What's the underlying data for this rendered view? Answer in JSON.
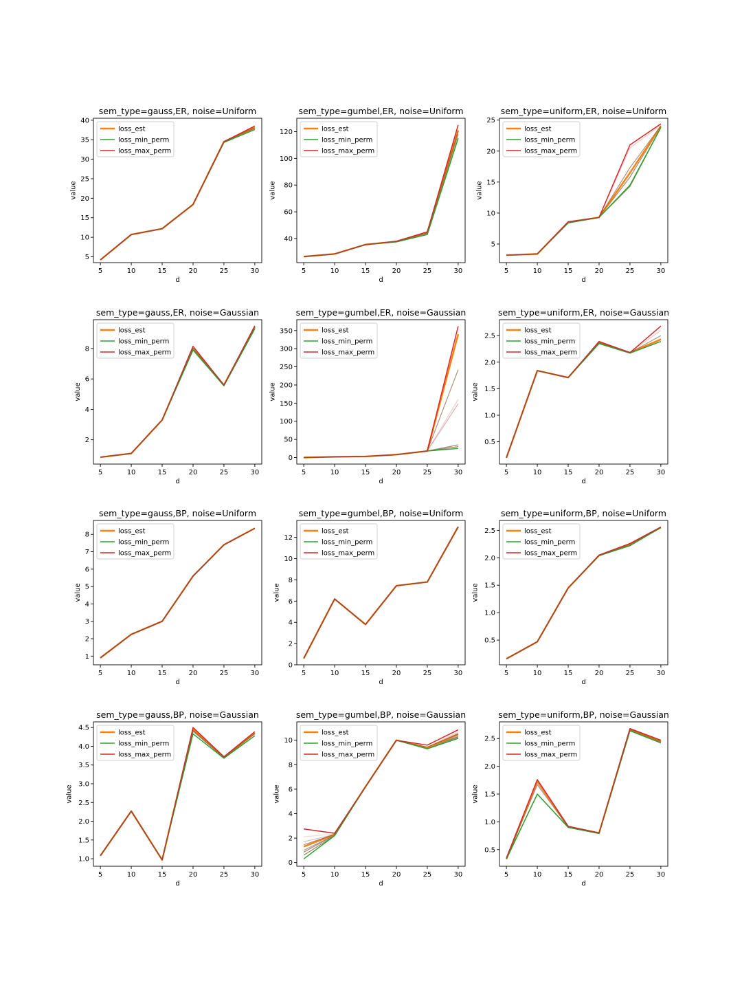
{
  "chart_data": [
    {
      "type": "line",
      "title": "sem_type=gauss,ER, noise=Uniform",
      "xlabel": "d",
      "ylabel": "value",
      "x": [
        5,
        10,
        15,
        20,
        25,
        30
      ],
      "xticks": [
        5,
        10,
        15,
        20,
        25,
        30
      ],
      "ylim": [
        3.5,
        40.5
      ],
      "yticks": [
        5,
        10,
        15,
        20,
        25,
        30,
        35,
        40
      ],
      "legend_position": "upper-left",
      "series": [
        {
          "name": "loss_est",
          "color": "#ff7f0e",
          "values": [
            4.2,
            10.7,
            12.2,
            18.4,
            34.5,
            38.1
          ]
        },
        {
          "name": "loss_min_perm",
          "color": "#2ca02c",
          "values": [
            4.2,
            10.7,
            12.2,
            18.4,
            34.3,
            37.6
          ]
        },
        {
          "name": "loss_max_perm",
          "color": "#d62728",
          "values": [
            4.2,
            10.7,
            12.2,
            18.4,
            34.5,
            38.5
          ]
        }
      ],
      "band": [
        {
          "color": "#7a6040",
          "values": [
            4.2,
            10.7,
            12.2,
            18.4,
            34.4,
            37.9
          ]
        }
      ]
    },
    {
      "type": "line",
      "title": "sem_type=gumbel,ER, noise=Uniform",
      "xlabel": "d",
      "ylabel": "value",
      "x": [
        5,
        10,
        15,
        20,
        25,
        30
      ],
      "xticks": [
        5,
        10,
        15,
        20,
        25,
        30
      ],
      "ylim": [
        22,
        130
      ],
      "yticks": [
        40,
        60,
        80,
        100,
        120
      ],
      "legend_position": "upper-left",
      "series": [
        {
          "name": "loss_est",
          "color": "#ff7f0e",
          "values": [
            26.5,
            28.5,
            35.5,
            37.8,
            44.5,
            121
          ]
        },
        {
          "name": "loss_min_perm",
          "color": "#2ca02c",
          "values": [
            26.5,
            28.5,
            35.5,
            37.5,
            43.0,
            115
          ]
        },
        {
          "name": "loss_max_perm",
          "color": "#d62728",
          "values": [
            26.5,
            28.5,
            35.5,
            38.0,
            45.0,
            125
          ]
        }
      ],
      "band": [
        {
          "color": "#7a6040",
          "values": [
            26.5,
            28.5,
            35.5,
            37.7,
            43.8,
            118
          ]
        }
      ]
    },
    {
      "type": "line",
      "title": "sem_type=uniform,ER, noise=Uniform",
      "xlabel": "d",
      "ylabel": "value",
      "x": [
        5,
        10,
        15,
        20,
        25,
        30
      ],
      "xticks": [
        5,
        10,
        15,
        20,
        25,
        30
      ],
      "ylim": [
        2.0,
        25.3
      ],
      "yticks": [
        5,
        10,
        15,
        20,
        25
      ],
      "legend_position": "upper-left",
      "series": [
        {
          "name": "loss_est",
          "color": "#ff7f0e",
          "values": [
            3.2,
            3.4,
            8.5,
            9.3,
            16.5,
            24.0
          ]
        },
        {
          "name": "loss_min_perm",
          "color": "#2ca02c",
          "values": [
            3.2,
            3.4,
            8.4,
            9.3,
            14.5,
            23.8
          ]
        },
        {
          "name": "loss_max_perm",
          "color": "#d62728",
          "values": [
            3.2,
            3.4,
            8.6,
            9.3,
            21.0,
            24.4
          ]
        }
      ],
      "band": [
        {
          "color": "#7a6040",
          "values": [
            3.2,
            3.4,
            8.5,
            9.3,
            14.3,
            23.8
          ]
        },
        {
          "color": "#e8b8b8",
          "values": [
            3.2,
            3.4,
            8.5,
            9.3,
            20.5,
            24.2
          ]
        },
        {
          "color": "#8a6a4a",
          "values": [
            3.2,
            3.4,
            8.5,
            9.3,
            15.8,
            24.0
          ]
        }
      ]
    },
    {
      "type": "line",
      "title": "sem_type=gauss,ER, noise=Gaussian",
      "xlabel": "d",
      "ylabel": "value",
      "x": [
        5,
        10,
        15,
        20,
        25,
        30
      ],
      "xticks": [
        5,
        10,
        15,
        20,
        25,
        30
      ],
      "ylim": [
        0.4,
        9.9
      ],
      "yticks": [
        2,
        4,
        6,
        8
      ],
      "legend_position": "upper-left",
      "series": [
        {
          "name": "loss_est",
          "color": "#ff7f0e",
          "values": [
            0.85,
            1.1,
            3.3,
            8.0,
            5.6,
            9.4
          ]
        },
        {
          "name": "loss_min_perm",
          "color": "#2ca02c",
          "values": [
            0.85,
            1.1,
            3.3,
            7.9,
            5.55,
            9.3
          ]
        },
        {
          "name": "loss_max_perm",
          "color": "#d62728",
          "values": [
            0.85,
            1.1,
            3.3,
            8.15,
            5.6,
            9.5
          ]
        }
      ],
      "band": [
        {
          "color": "#7a6040",
          "values": [
            0.85,
            1.1,
            3.3,
            8.0,
            5.55,
            9.35
          ]
        }
      ]
    },
    {
      "type": "line",
      "title": "sem_type=gumbel,ER, noise=Gaussian",
      "xlabel": "d",
      "ylabel": "value",
      "x": [
        5,
        10,
        15,
        20,
        25,
        30
      ],
      "xticks": [
        5,
        10,
        15,
        20,
        25,
        30
      ],
      "ylim": [
        -18,
        380
      ],
      "yticks": [
        0,
        50,
        100,
        150,
        200,
        250,
        300,
        350
      ],
      "legend_position": "upper-left",
      "series": [
        {
          "name": "loss_est",
          "color": "#ff7f0e",
          "values": [
            0,
            2,
            3,
            8,
            18,
            340
          ]
        },
        {
          "name": "loss_min_perm",
          "color": "#2ca02c",
          "values": [
            0,
            2,
            3,
            8,
            18,
            25
          ]
        },
        {
          "name": "loss_max_perm",
          "color": "#d62728",
          "values": [
            0,
            2,
            3,
            8,
            18,
            362
          ]
        }
      ],
      "band": [
        {
          "color": "#e8c0c0",
          "values": [
            0,
            2,
            3,
            8,
            18,
            160
          ]
        },
        {
          "color": "#c8a0a0",
          "values": [
            0,
            2,
            3,
            8,
            18,
            148
          ]
        },
        {
          "color": "#7a6040",
          "values": [
            0,
            2,
            3,
            8,
            18,
            30
          ]
        },
        {
          "color": "#8a6a4a",
          "values": [
            0,
            2,
            3,
            8,
            18,
            35
          ]
        }
      ]
    },
    {
      "type": "line",
      "title": "sem_type=uniform,ER, noise=Gaussian",
      "xlabel": "d",
      "ylabel": "value",
      "x": [
        5,
        10,
        15,
        20,
        25,
        30
      ],
      "xticks": [
        5,
        10,
        15,
        20,
        25,
        30
      ],
      "ylim": [
        0.08,
        2.8
      ],
      "yticks": [
        0.5,
        1.0,
        1.5,
        2.0,
        2.5
      ],
      "legend_position": "upper-left",
      "series": [
        {
          "name": "loss_est",
          "color": "#ff7f0e",
          "values": [
            0.2,
            1.84,
            1.71,
            2.37,
            2.18,
            2.43
          ]
        },
        {
          "name": "loss_min_perm",
          "color": "#2ca02c",
          "values": [
            0.2,
            1.84,
            1.71,
            2.35,
            2.17,
            2.39
          ]
        },
        {
          "name": "loss_max_perm",
          "color": "#d62728",
          "values": [
            0.2,
            1.84,
            1.71,
            2.39,
            2.18,
            2.68
          ]
        }
      ],
      "band": [
        {
          "color": "#7a6040",
          "values": [
            0.2,
            1.84,
            1.71,
            2.37,
            2.17,
            2.42
          ]
        },
        {
          "color": "#e8c0c0",
          "values": [
            0.2,
            1.84,
            1.71,
            2.37,
            2.18,
            2.6
          ]
        }
      ]
    },
    {
      "type": "line",
      "title": "sem_type=gauss,BP, noise=Uniform",
      "xlabel": "d",
      "ylabel": "value",
      "x": [
        5,
        10,
        15,
        20,
        25,
        30
      ],
      "xticks": [
        5,
        10,
        15,
        20,
        25,
        30
      ],
      "ylim": [
        0.5,
        8.8
      ],
      "yticks": [
        1,
        2,
        3,
        4,
        5,
        6,
        7,
        8
      ],
      "legend_position": "upper-left",
      "series": [
        {
          "name": "loss_est",
          "color": "#ff7f0e",
          "values": [
            0.9,
            2.25,
            3.0,
            5.6,
            7.4,
            8.35
          ]
        },
        {
          "name": "loss_min_perm",
          "color": "#2ca02c",
          "values": [
            0.9,
            2.25,
            3.0,
            5.6,
            7.4,
            8.35
          ]
        },
        {
          "name": "loss_max_perm",
          "color": "#d62728",
          "values": [
            0.9,
            2.25,
            3.0,
            5.6,
            7.4,
            8.35
          ]
        }
      ],
      "band": [
        {
          "color": "#7a6040",
          "values": [
            0.9,
            2.25,
            3.0,
            5.6,
            7.4,
            8.35
          ]
        }
      ]
    },
    {
      "type": "line",
      "title": "sem_type=gumbel,BP, noise=Uniform",
      "xlabel": "d",
      "ylabel": "value",
      "x": [
        5,
        10,
        15,
        20,
        25,
        30
      ],
      "xticks": [
        5,
        10,
        15,
        20,
        25,
        30
      ],
      "ylim": [
        0,
        13.6
      ],
      "yticks": [
        0,
        2,
        4,
        6,
        8,
        10,
        12
      ],
      "legend_position": "upper-left",
      "series": [
        {
          "name": "loss_est",
          "color": "#ff7f0e",
          "values": [
            0.6,
            6.2,
            3.8,
            7.45,
            7.8,
            13.0
          ]
        },
        {
          "name": "loss_min_perm",
          "color": "#2ca02c",
          "values": [
            0.6,
            6.2,
            3.8,
            7.45,
            7.8,
            13.0
          ]
        },
        {
          "name": "loss_max_perm",
          "color": "#d62728",
          "values": [
            0.6,
            6.2,
            3.8,
            7.45,
            7.8,
            13.0
          ]
        }
      ],
      "band": [
        {
          "color": "#7a6040",
          "values": [
            0.6,
            6.2,
            3.8,
            7.45,
            7.8,
            13.0
          ]
        }
      ]
    },
    {
      "type": "line",
      "title": "sem_type=uniform,BP, noise=Uniform",
      "xlabel": "d",
      "ylabel": "value",
      "x": [
        5,
        10,
        15,
        20,
        25,
        30
      ],
      "xticks": [
        5,
        10,
        15,
        20,
        25,
        30
      ],
      "ylim": [
        0.05,
        2.68
      ],
      "yticks": [
        0.5,
        1.0,
        1.5,
        2.0,
        2.5
      ],
      "legend_position": "upper-left",
      "series": [
        {
          "name": "loss_est",
          "color": "#ff7f0e",
          "values": [
            0.16,
            0.47,
            1.45,
            2.04,
            2.24,
            2.55
          ]
        },
        {
          "name": "loss_min_perm",
          "color": "#2ca02c",
          "values": [
            0.16,
            0.47,
            1.45,
            2.04,
            2.22,
            2.55
          ]
        },
        {
          "name": "loss_max_perm",
          "color": "#d62728",
          "values": [
            0.16,
            0.47,
            1.45,
            2.05,
            2.26,
            2.56
          ]
        }
      ],
      "band": [
        {
          "color": "#7a6040",
          "values": [
            0.16,
            0.47,
            1.45,
            2.04,
            2.23,
            2.55
          ]
        }
      ]
    },
    {
      "type": "line",
      "title": "sem_type=gauss,BP, noise=Gaussian",
      "xlabel": "d",
      "ylabel": "value",
      "x": [
        5,
        10,
        15,
        20,
        25,
        30
      ],
      "xticks": [
        5,
        10,
        15,
        20,
        25,
        30
      ],
      "ylim": [
        0.8,
        4.65
      ],
      "yticks": [
        1.0,
        1.5,
        2.0,
        2.5,
        3.0,
        3.5,
        4.0,
        4.5
      ],
      "legend_position": "upper-left",
      "series": [
        {
          "name": "loss_est",
          "color": "#ff7f0e",
          "values": [
            1.08,
            2.27,
            0.97,
            4.45,
            3.7,
            4.35
          ]
        },
        {
          "name": "loss_min_perm",
          "color": "#2ca02c",
          "values": [
            1.08,
            2.27,
            0.97,
            4.33,
            3.68,
            4.28
          ]
        },
        {
          "name": "loss_max_perm",
          "color": "#d62728",
          "values": [
            1.08,
            2.27,
            0.97,
            4.5,
            3.72,
            4.39
          ]
        }
      ],
      "band": [
        {
          "color": "#7a6040",
          "values": [
            1.08,
            2.27,
            0.97,
            4.4,
            3.7,
            4.33
          ]
        }
      ]
    },
    {
      "type": "line",
      "title": "sem_type=gumbel,BP, noise=Gaussian",
      "xlabel": "d",
      "ylabel": "value",
      "x": [
        5,
        10,
        15,
        20,
        25,
        30
      ],
      "xticks": [
        5,
        10,
        15,
        20,
        25,
        30
      ],
      "ylim": [
        -0.3,
        11.5
      ],
      "yticks": [
        0,
        2,
        4,
        6,
        8,
        10
      ],
      "legend_position": "upper-left",
      "series": [
        {
          "name": "loss_est",
          "color": "#ff7f0e",
          "values": [
            1.3,
            2.3,
            6.2,
            10.0,
            9.4,
            10.5
          ]
        },
        {
          "name": "loss_min_perm",
          "color": "#2ca02c",
          "values": [
            0.3,
            2.2,
            6.2,
            10.0,
            9.3,
            10.15
          ]
        },
        {
          "name": "loss_max_perm",
          "color": "#d62728",
          "values": [
            2.75,
            2.4,
            6.2,
            10.0,
            9.6,
            10.85
          ]
        }
      ],
      "band": [
        {
          "color": "#e8d0d0",
          "values": [
            2.1,
            2.35,
            6.2,
            10.0,
            9.45,
            10.7
          ]
        },
        {
          "color": "#c8b0b0",
          "values": [
            1.7,
            2.3,
            6.2,
            10.0,
            9.4,
            10.6
          ]
        },
        {
          "color": "#a08070",
          "values": [
            1.0,
            2.25,
            6.2,
            10.0,
            9.35,
            10.4
          ]
        },
        {
          "color": "#7a6040",
          "values": [
            0.6,
            2.2,
            6.2,
            10.0,
            9.3,
            10.25
          ]
        },
        {
          "color": "#8a6a4a",
          "values": [
            0.85,
            2.25,
            6.2,
            10.0,
            9.4,
            10.3
          ]
        }
      ]
    },
    {
      "type": "line",
      "title": "sem_type=uniform,BP, noise=Gaussian",
      "xlabel": "d",
      "ylabel": "value",
      "x": [
        5,
        10,
        15,
        20,
        25,
        30
      ],
      "xticks": [
        5,
        10,
        15,
        20,
        25,
        30
      ],
      "ylim": [
        0.2,
        2.8
      ],
      "yticks": [
        0.5,
        1.0,
        1.5,
        2.0,
        2.5
      ],
      "legend_position": "upper-left",
      "series": [
        {
          "name": "loss_est",
          "color": "#ff7f0e",
          "values": [
            0.33,
            1.74,
            0.91,
            0.8,
            2.66,
            2.45
          ]
        },
        {
          "name": "loss_min_perm",
          "color": "#2ca02c",
          "values": [
            0.33,
            1.5,
            0.9,
            0.79,
            2.64,
            2.42
          ]
        },
        {
          "name": "loss_max_perm",
          "color": "#d62728",
          "values": [
            0.35,
            1.76,
            0.92,
            0.8,
            2.68,
            2.47
          ]
        }
      ],
      "band": [
        {
          "color": "#7a6040",
          "values": [
            0.33,
            1.5,
            0.9,
            0.79,
            2.65,
            2.43
          ]
        },
        {
          "color": "#c08080",
          "values": [
            0.34,
            1.7,
            0.91,
            0.8,
            2.66,
            2.45
          ]
        }
      ]
    }
  ]
}
